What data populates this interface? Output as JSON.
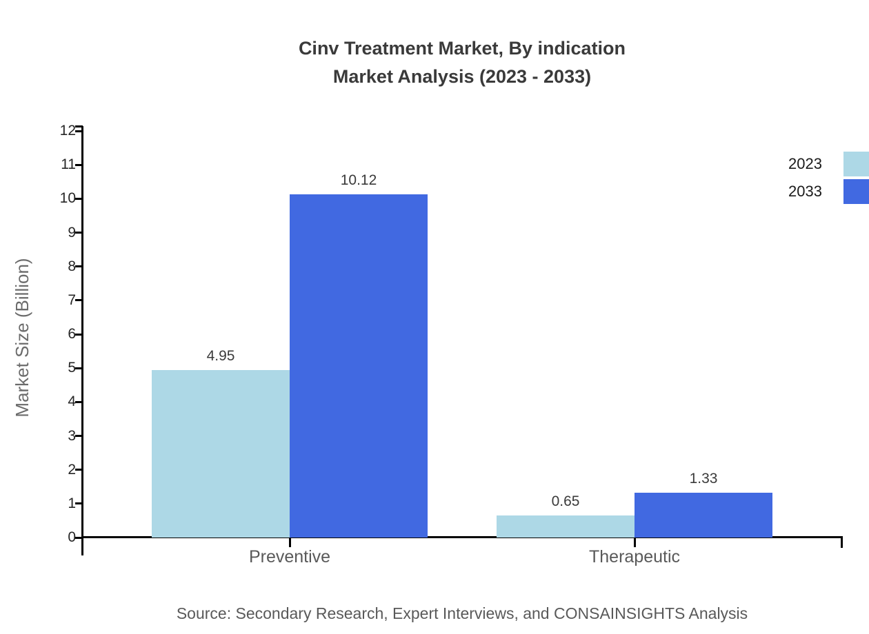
{
  "title": {
    "line1": "Cinv Treatment Market, By indication",
    "line2": "Market Analysis (2023 - 2033)"
  },
  "y_axis": {
    "label": "Market Size (Billion)"
  },
  "legend": {
    "position": "top-right",
    "items": [
      {
        "label": "2023",
        "color": "#ADD8E6"
      },
      {
        "label": "2033",
        "color": "#4169E1"
      }
    ]
  },
  "source_note": "Source: Secondary Research, Expert Interviews, and CONSAINSIGHTS Analysis",
  "colors": {
    "series_2023": "#ADD8E6",
    "series_2033": "#4169E1",
    "axis": "#000000",
    "title_text": "#3a3a3a",
    "muted_text": "#595959",
    "background": "#ffffff"
  },
  "chart_data": {
    "type": "bar",
    "title": "Cinv Treatment Market, By indication Market Analysis (2023 - 2033)",
    "categories": [
      "Preventive",
      "Therapeutic"
    ],
    "series": [
      {
        "name": "2023",
        "color": "#ADD8E6",
        "values": [
          4.95,
          0.65
        ],
        "labels": [
          "4.95",
          "0.65"
        ]
      },
      {
        "name": "2033",
        "color": "#4169E1",
        "values": [
          10.12,
          1.33
        ],
        "labels": [
          "10.12",
          "1.33"
        ]
      }
    ],
    "xlabel": "",
    "ylabel": "Market Size (Billion)",
    "ylim": [
      0,
      12
    ],
    "yticks": [
      0,
      1,
      2,
      3,
      4,
      5,
      6,
      7,
      8,
      9,
      10,
      11,
      12
    ],
    "grid": false,
    "legend_position": "top-right",
    "bar_value_labels": true
  }
}
